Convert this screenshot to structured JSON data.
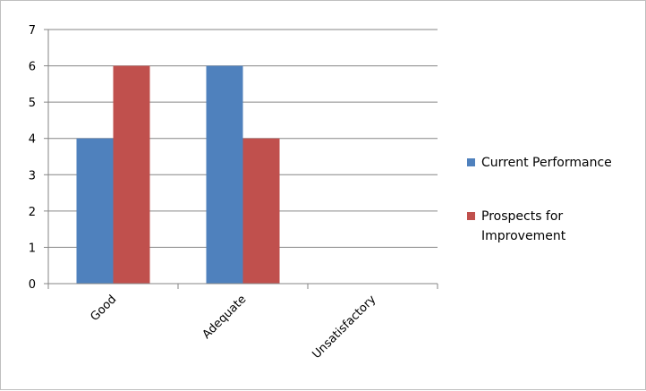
{
  "chart_data": {
    "type": "bar",
    "categories": [
      "Good",
      "Adequate",
      "Unsatisfactory"
    ],
    "series": [
      {
        "name": "Current Performance",
        "color": "#4f81bd",
        "values": [
          4,
          6,
          0
        ]
      },
      {
        "name": "Prospects for Improvement",
        "color": "#c0504d",
        "values": [
          6,
          4,
          0
        ]
      }
    ],
    "ylim": [
      0,
      7
    ],
    "yticks": [
      0,
      1,
      2,
      3,
      4,
      5,
      6,
      7
    ],
    "grid": true,
    "legend_position": "right",
    "legend_lines": [
      [
        "Current Performance"
      ],
      [
        "Prospects for",
        "Improvement"
      ]
    ]
  }
}
